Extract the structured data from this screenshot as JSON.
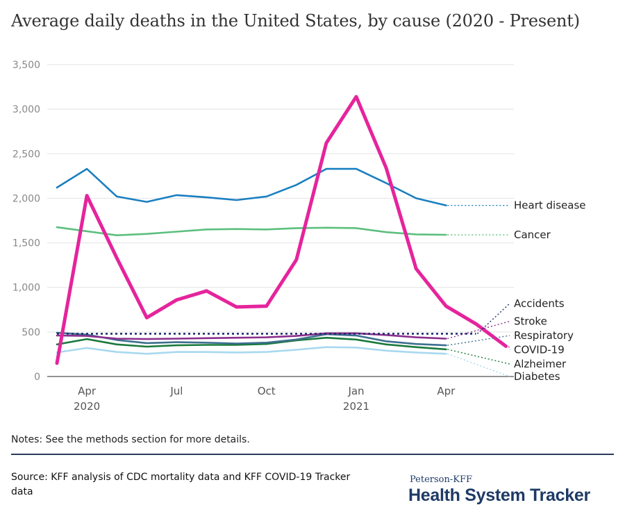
{
  "title": "Average daily deaths in the United States, by cause (2020 - Present)",
  "notes": "Notes: See the methods section for more details.",
  "source": "Source: KFF analysis of CDC mortality data and KFF COVID-19 Tracker data",
  "brand": {
    "top": "Peterson-KFF",
    "main": "Health System Tracker"
  },
  "chart_data": {
    "type": "line",
    "title": "Average daily deaths in the United States, by cause (2020 - Present)",
    "ylim": [
      0,
      3500
    ],
    "yticks": [
      0,
      500,
      1000,
      1500,
      2000,
      2500,
      3000,
      3500
    ],
    "ytick_labels": [
      "0",
      "500",
      "1,000",
      "1,500",
      "2,000",
      "2,500",
      "3,000",
      "3,500"
    ],
    "x": [
      "2020-03",
      "2020-04",
      "2020-05",
      "2020-06",
      "2020-07",
      "2020-08",
      "2020-09",
      "2020-10",
      "2020-11",
      "2020-12",
      "2021-01",
      "2021-02",
      "2021-03",
      "2021-04",
      "2021-05",
      "2021-06"
    ],
    "xticks": [
      {
        "x": "2020-04",
        "label": "Apr",
        "year": "2020"
      },
      {
        "x": "2020-07",
        "label": "Jul",
        "year": ""
      },
      {
        "x": "2020-10",
        "label": "Oct",
        "year": ""
      },
      {
        "x": "2021-01",
        "label": "Jan",
        "year": "2021"
      },
      {
        "x": "2021-04",
        "label": "Apr",
        "year": ""
      }
    ],
    "grid": true,
    "legend": "right",
    "series": [
      {
        "name": "Heart disease",
        "color": "#1a7fc1",
        "values": [
          2120,
          2330,
          2020,
          1960,
          2035,
          2010,
          1980,
          2020,
          2150,
          2330,
          2330,
          2170,
          2000,
          1920,
          null,
          null
        ],
        "label_value": 1920
      },
      {
        "name": "Cancer",
        "color": "#5cbf7e",
        "values": [
          1675,
          1630,
          1585,
          1600,
          1625,
          1650,
          1655,
          1650,
          1665,
          1670,
          1665,
          1620,
          1595,
          1590,
          null,
          null
        ],
        "label_value": 1590
      },
      {
        "name": "Accidents",
        "color": "#1c2d6b",
        "dashed": true,
        "values": [
          480,
          480,
          480,
          480,
          480,
          480,
          480,
          480,
          480,
          480,
          480,
          480,
          480,
          480,
          480,
          null
        ],
        "label_value": 820
      },
      {
        "name": "Stroke",
        "color": "#8b2f8e",
        "values": [
          460,
          455,
          425,
          420,
          425,
          430,
          435,
          440,
          455,
          485,
          485,
          465,
          440,
          425,
          null,
          null
        ],
        "label_value": 620
      },
      {
        "name": "Respiratory",
        "color": "#3d6f8f",
        "values": [
          490,
          470,
          410,
          375,
          385,
          380,
          370,
          380,
          415,
          475,
          460,
          395,
          365,
          350,
          null,
          null
        ],
        "label_value": 460
      },
      {
        "name": "COVID-19",
        "color": "#e5249c",
        "bold": true,
        "values": [
          150,
          2030,
          1330,
          660,
          860,
          960,
          780,
          790,
          1310,
          2620,
          3140,
          2340,
          1210,
          790,
          590,
          340
        ],
        "label_value": 300
      },
      {
        "name": "Alzheimer",
        "color": "#1a7a3c",
        "values": [
          360,
          420,
          360,
          335,
          350,
          355,
          355,
          365,
          405,
          435,
          415,
          360,
          330,
          305,
          null,
          null
        ],
        "label_value": 140
      },
      {
        "name": "Diabetes",
        "color": "#a8d8ef",
        "values": [
          270,
          320,
          275,
          255,
          275,
          275,
          270,
          275,
          300,
          330,
          325,
          290,
          270,
          255,
          null,
          null
        ],
        "label_value": 0
      }
    ]
  }
}
